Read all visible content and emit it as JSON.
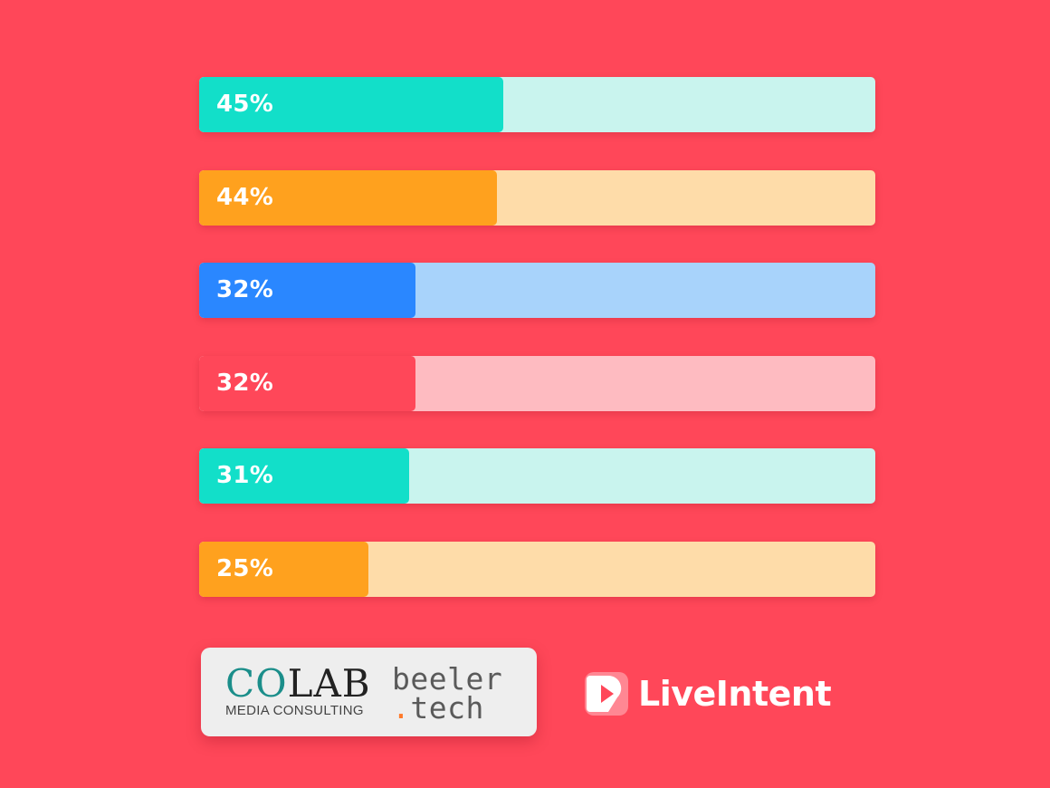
{
  "chart_data": {
    "type": "bar",
    "orientation": "horizontal",
    "values": [
      45,
      44,
      32,
      32,
      31,
      25
    ],
    "data_labels": [
      "45%",
      "44%",
      "32%",
      "32%",
      "31%",
      "25%"
    ],
    "xlim": [
      0,
      100
    ],
    "grid": false,
    "legend": "none",
    "bar_colors": [
      "#12dfc9",
      "#ffa11e",
      "#2a87ff",
      "#ff4759",
      "#12dfc9",
      "#ffa11e"
    ],
    "track_colors": [
      "#c9f4ee",
      "#fedca9",
      "#a8d3fb",
      "#febbc1",
      "#c9f4ee",
      "#fedca9"
    ]
  },
  "colors": {
    "background": "#ff4759"
  },
  "logos": {
    "colab": {
      "co": "CO",
      "lab": "LAB",
      "subtitle": "MEDIA CONSULTING"
    },
    "beeler": {
      "line1": "beeler",
      "dot": ".",
      "line2": "tech"
    },
    "liveintent": {
      "icon": "liveintent-mark-icon",
      "name": "LiveIntent"
    }
  }
}
